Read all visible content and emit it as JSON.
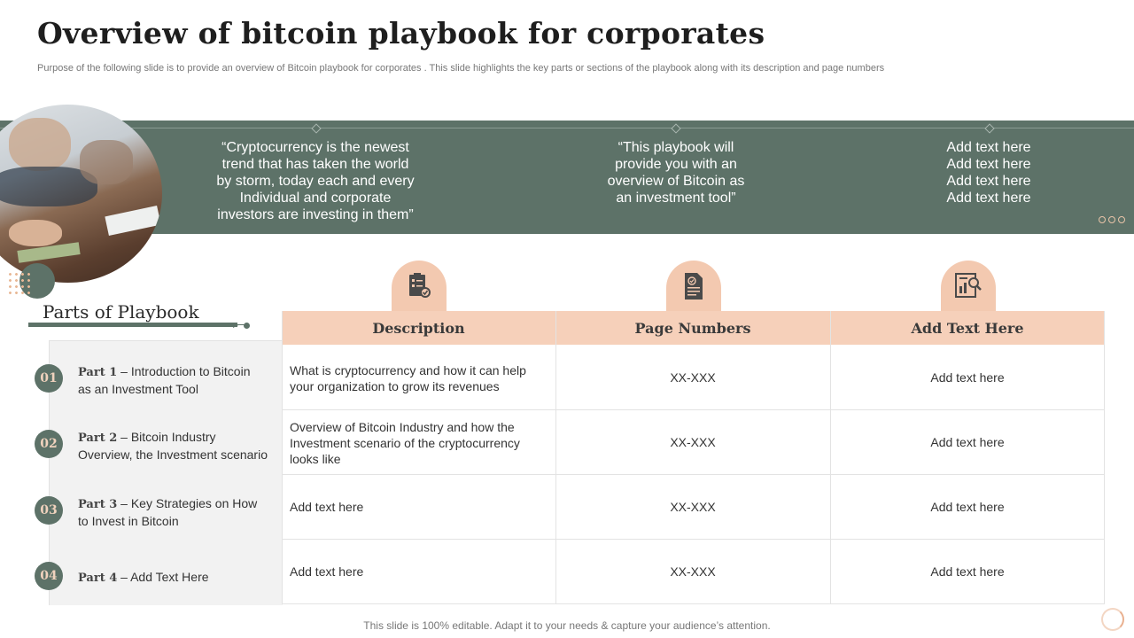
{
  "header": {
    "title": "Overview of bitcoin playbook for corporates",
    "subtitle": "Purpose of the following slide is to provide an overview of Bitcoin playbook for corporates . This slide highlights the key parts or sections of the playbook along with its description and page numbers"
  },
  "banner": {
    "quotes": [
      "“Cryptocurrency  is the newest\ntrend that has taken the world\nby storm, today each and every\nIndividual and corporate\ninvestors are investing in them”",
      "“This playbook will\nprovide you with an\noverview of Bitcoin as\nan investment tool”",
      "Add text here\nAdd text here\nAdd text here\nAdd text here"
    ]
  },
  "parts": {
    "title": "Parts of  Playbook",
    "items": [
      {
        "num": "01",
        "label": "Part 1",
        "text_line1": " – Introduction to Bitcoin",
        "text_line2": "as an Investment Tool"
      },
      {
        "num": "02",
        "label": "Part 2",
        "text_line1": " – Bitcoin Industry",
        "text_line2": "Overview, the Investment scenario"
      },
      {
        "num": "03",
        "label": "Part 3",
        "text_line1": " – Key Strategies on How",
        "text_line2": "to Invest in Bitcoin"
      },
      {
        "num": "04",
        "label": "Part 4",
        "text_line1": " – Add Text Here",
        "text_line2": ""
      }
    ]
  },
  "table": {
    "headers": [
      "Description",
      "Page Numbers",
      "Add Text Here"
    ],
    "rows": [
      [
        "What is cryptocurrency and how it can help\nyour organization to grow its revenues",
        "XX-XXX",
        "Add text here"
      ],
      [
        "Overview of Bitcoin Industry and how the\nInvestment scenario of the cryptocurrency\nlooks like",
        "XX-XXX",
        "Add text here"
      ],
      [
        "Add text here",
        "XX-XXX",
        "Add text here"
      ],
      [
        "Add text here",
        "XX-XXX",
        "Add text here"
      ]
    ]
  },
  "icons": [
    "checklist-icon",
    "document-icon",
    "report-search-icon"
  ],
  "colors": {
    "band": "#5d7268",
    "accent": "#f6d0ba",
    "icon_tab": "#f3c9b0"
  },
  "footer": "This slide is 100% editable. Adapt it to your needs & capture your audience’s attention."
}
